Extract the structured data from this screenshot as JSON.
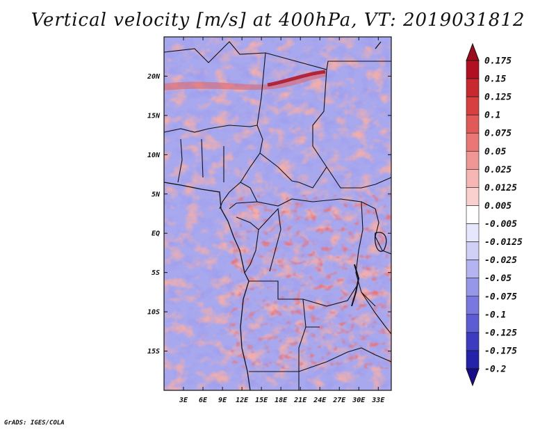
{
  "title": "Vertical velocity [m/s] at 400hPa, VT: 2019031812",
  "footer": "GrADS: IGES/COLA",
  "map": {
    "lon_range": [
      0,
      35
    ],
    "lat_range": [
      -20,
      25
    ],
    "lat_ticks": [
      {
        "value": 20,
        "label": "20N"
      },
      {
        "value": 15,
        "label": "15N"
      },
      {
        "value": 10,
        "label": "10N"
      },
      {
        "value": 5,
        "label": "5N"
      },
      {
        "value": 0,
        "label": "EQ"
      },
      {
        "value": -5,
        "label": "5S"
      },
      {
        "value": -10,
        "label": "10S"
      },
      {
        "value": -15,
        "label": "15S"
      }
    ],
    "lon_ticks": [
      {
        "value": 3,
        "label": "3E"
      },
      {
        "value": 6,
        "label": "6E"
      },
      {
        "value": 9,
        "label": "9E"
      },
      {
        "value": 12,
        "label": "12E"
      },
      {
        "value": 15,
        "label": "15E"
      },
      {
        "value": 18,
        "label": "18E"
      },
      {
        "value": 21,
        "label": "21E"
      },
      {
        "value": 24,
        "label": "24E"
      },
      {
        "value": 27,
        "label": "27E"
      },
      {
        "value": 30,
        "label": "30E"
      },
      {
        "value": 33,
        "label": "33E"
      }
    ]
  },
  "colorbar": {
    "levels": [
      {
        "label": "0.175",
        "color": "#b01020"
      },
      {
        "label": "0.15",
        "color": "#c8282e"
      },
      {
        "label": "0.125",
        "color": "#d84040"
      },
      {
        "label": "0.1",
        "color": "#e25a58"
      },
      {
        "label": "0.075",
        "color": "#ea7774"
      },
      {
        "label": "0.05",
        "color": "#f09694"
      },
      {
        "label": "0.025",
        "color": "#f6b6b4"
      },
      {
        "label": "0.0125",
        "color": "#fad0ce"
      },
      {
        "label": "0.005",
        "color": "#fde6e4"
      },
      {
        "label": "-0.005",
        "color": "#ffffff"
      },
      {
        "label": "-0.0125",
        "color": "#e6e6fc"
      },
      {
        "label": "-0.025",
        "color": "#cfcff8"
      },
      {
        "label": "-0.05",
        "color": "#b4b4f2"
      },
      {
        "label": "-0.075",
        "color": "#9797ea"
      },
      {
        "label": "-0.1",
        "color": "#7878e0"
      },
      {
        "label": "-0.125",
        "color": "#5c5cd4"
      },
      {
        "label": "-0.175",
        "color": "#3c3cc2"
      },
      {
        "label": "-0.2",
        "color": "#2222aa"
      }
    ],
    "top_cap_color": "#9c0c1c",
    "bottom_cap_color": "#180c8a",
    "middle_color": "#ffffff"
  }
}
